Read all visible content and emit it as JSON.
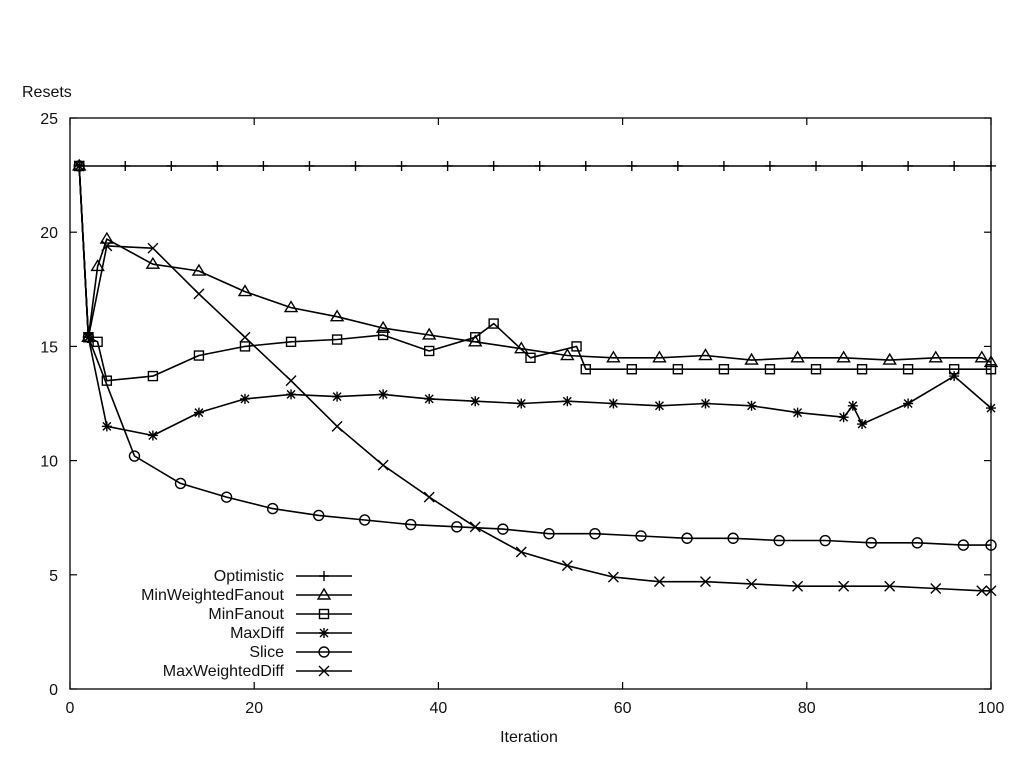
{
  "chart_data": {
    "type": "line",
    "ylabel": "Resets",
    "xlabel": "Iteration",
    "xlim": [
      0,
      100
    ],
    "ylim": [
      0,
      25
    ],
    "xticks": [
      0,
      20,
      40,
      60,
      80,
      100
    ],
    "yticks": [
      0,
      5,
      10,
      15,
      20,
      25
    ],
    "grid": false,
    "legend_position": "bottom-left",
    "series": [
      {
        "name": "Optimistic",
        "marker": "plus",
        "x": [
          1,
          6,
          11,
          16,
          21,
          26,
          31,
          36,
          41,
          46,
          51,
          56,
          61,
          66,
          71,
          76,
          81,
          86,
          91,
          96,
          100
        ],
        "y": [
          22.9,
          22.9,
          22.9,
          22.9,
          22.9,
          22.9,
          22.9,
          22.9,
          22.9,
          22.9,
          22.9,
          22.9,
          22.9,
          22.9,
          22.9,
          22.9,
          22.9,
          22.9,
          22.9,
          22.9,
          22.9
        ]
      },
      {
        "name": "MinWeightedFanout",
        "marker": "triangle",
        "x": [
          1,
          2,
          3,
          4,
          9,
          14,
          19,
          24,
          29,
          34,
          39,
          44,
          49,
          54,
          59,
          64,
          69,
          74,
          79,
          84,
          89,
          94,
          99,
          100
        ],
        "y": [
          22.9,
          15.4,
          18.5,
          19.7,
          18.6,
          18.3,
          17.4,
          16.7,
          16.3,
          15.8,
          15.5,
          15.2,
          14.9,
          14.6,
          14.5,
          14.5,
          14.6,
          14.4,
          14.5,
          14.5,
          14.4,
          14.5,
          14.5,
          14.3
        ]
      },
      {
        "name": "MinFanout",
        "marker": "square",
        "x": [
          1,
          2,
          3,
          4,
          9,
          14,
          19,
          24,
          29,
          34,
          39,
          44,
          46,
          50,
          55,
          56,
          61,
          66,
          71,
          76,
          81,
          86,
          91,
          96,
          100
        ],
        "y": [
          22.9,
          15.4,
          15.2,
          13.5,
          13.7,
          14.6,
          15.0,
          15.2,
          15.3,
          15.5,
          14.8,
          15.4,
          16.0,
          14.5,
          15.0,
          14.0,
          14.0,
          14.0,
          14.0,
          14.0,
          14.0,
          14.0,
          14.0,
          14.0,
          14.0
        ]
      },
      {
        "name": "MaxDiff",
        "marker": "asterisk",
        "x": [
          1,
          2,
          4,
          9,
          14,
          19,
          24,
          29,
          34,
          39,
          44,
          49,
          54,
          59,
          64,
          69,
          74,
          79,
          84,
          85,
          86,
          91,
          96,
          100
        ],
        "y": [
          22.9,
          15.4,
          11.5,
          11.1,
          12.1,
          12.7,
          12.9,
          12.8,
          12.9,
          12.7,
          12.6,
          12.5,
          12.6,
          12.5,
          12.4,
          12.5,
          12.4,
          12.1,
          11.9,
          12.4,
          11.6,
          12.5,
          13.7,
          12.3
        ]
      },
      {
        "name": "Slice",
        "marker": "circle",
        "x": [
          1,
          2,
          7,
          12,
          17,
          22,
          27,
          32,
          37,
          42,
          47,
          52,
          57,
          62,
          67,
          72,
          77,
          82,
          87,
          92,
          97,
          100
        ],
        "y": [
          22.9,
          15.4,
          10.2,
          9.0,
          8.4,
          7.9,
          7.6,
          7.4,
          7.2,
          7.1,
          7.0,
          6.8,
          6.8,
          6.7,
          6.6,
          6.6,
          6.5,
          6.5,
          6.4,
          6.4,
          6.3,
          6.3
        ]
      },
      {
        "name": "MaxWeightedDiff",
        "marker": "cross",
        "x": [
          1,
          2,
          4,
          9,
          14,
          19,
          24,
          29,
          34,
          39,
          44,
          49,
          54,
          59,
          64,
          69,
          74,
          79,
          84,
          89,
          94,
          99,
          100
        ],
        "y": [
          22.9,
          15.4,
          19.4,
          19.3,
          17.3,
          15.4,
          13.5,
          11.5,
          9.8,
          8.4,
          7.1,
          6.0,
          5.4,
          4.9,
          4.7,
          4.7,
          4.6,
          4.5,
          4.5,
          4.5,
          4.4,
          4.3,
          4.3
        ]
      }
    ]
  }
}
